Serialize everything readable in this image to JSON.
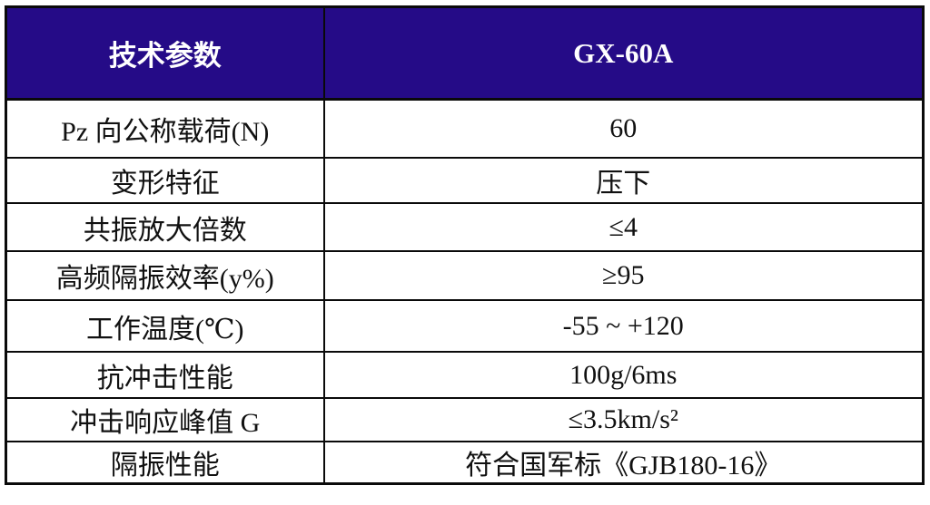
{
  "table": {
    "header": {
      "param_col": "技术参数",
      "model_col": "GX-60A"
    },
    "rows": [
      {
        "label": "Pz 向公称载荷(N)",
        "value": "60"
      },
      {
        "label": "变形特征",
        "value": "压下"
      },
      {
        "label": "共振放大倍数",
        "value": "≤4"
      },
      {
        "label": "高频隔振效率(y%)",
        "value": "≥95"
      },
      {
        "label": "工作温度(℃)",
        "value": "-55 ~ +120"
      },
      {
        "label": "抗冲击性能",
        "value": "100g/6ms"
      },
      {
        "label": "冲击响应峰值 G",
        "value": "≤3.5km/s²"
      },
      {
        "label": "隔振性能",
        "value": "符合国军标《GJB180-16》"
      }
    ],
    "colors": {
      "header_bg": "#250b87",
      "header_text": "#ffffff",
      "border": "#0a0a0a",
      "body_text": "#111111"
    }
  }
}
